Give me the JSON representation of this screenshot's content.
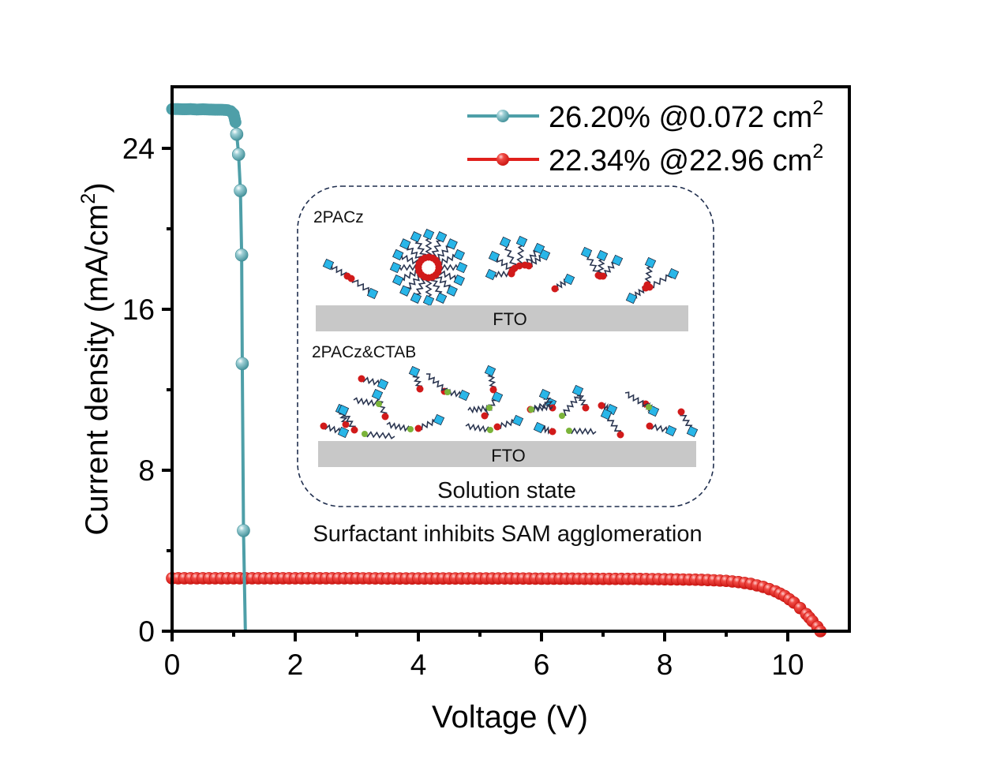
{
  "chart_data": {
    "type": "line",
    "title": "",
    "xlabel": "Voltage (V)",
    "ylabel": "Current density (mA/cm²)",
    "ylabel_parts": {
      "main": "Current density (mA/cm",
      "sup": "2",
      "end": ")"
    },
    "xlim": [
      0,
      11
    ],
    "ylim": [
      0,
      27.06
    ],
    "x_ticks": [
      0,
      2,
      4,
      6,
      8,
      10
    ],
    "x_tick_labels": [
      "0",
      "2",
      "4",
      "6",
      "8",
      "10"
    ],
    "x_minor_ticks": [
      1,
      3,
      5,
      7,
      9
    ],
    "y_ticks": [
      0,
      8,
      16,
      24
    ],
    "y_tick_labels": [
      "0",
      "8",
      "16",
      "24"
    ],
    "y_minor_ticks": [
      4,
      12,
      20
    ],
    "grid": false,
    "legend_position": "top-right",
    "series": [
      {
        "name": "26.20% @0.072 cm²",
        "label_main": "26.20% @0.072 cm",
        "label_sup": "2",
        "color": "#4e9fa8",
        "marker": "sphere",
        "x": [
          0,
          0.1,
          0.2,
          0.3,
          0.4,
          0.5,
          0.6,
          0.7,
          0.8,
          0.9,
          0.95,
          1.0,
          1.03,
          1.05,
          1.08,
          1.11,
          1.13,
          1.14,
          1.16,
          1.19
        ],
        "y": [
          25.95,
          25.95,
          25.94,
          25.95,
          25.93,
          25.94,
          25.93,
          25.92,
          25.92,
          25.9,
          25.85,
          25.7,
          25.3,
          24.7,
          23.7,
          21.9,
          18.7,
          13.3,
          5.0,
          0
        ]
      },
      {
        "name": "22.34% @22.96 cm²",
        "label_main": "22.34% @22.96 cm",
        "label_sup": "2",
        "color": "#e0201c",
        "marker": "sphere",
        "x": [
          0,
          0.5,
          1,
          1.5,
          2,
          2.5,
          3,
          3.5,
          4,
          4.5,
          5,
          5.5,
          6,
          6.5,
          7,
          7.5,
          8,
          8.5,
          8.8,
          9.0,
          9.2,
          9.4,
          9.6,
          9.8,
          9.95,
          10.1,
          10.2,
          10.3,
          10.4,
          10.48,
          10.53
        ],
        "y": [
          2.63,
          2.63,
          2.63,
          2.63,
          2.63,
          2.63,
          2.63,
          2.62,
          2.62,
          2.62,
          2.62,
          2.62,
          2.61,
          2.61,
          2.6,
          2.6,
          2.58,
          2.56,
          2.53,
          2.5,
          2.44,
          2.35,
          2.2,
          1.98,
          1.75,
          1.42,
          1.15,
          0.85,
          0.5,
          0.22,
          0
        ]
      }
    ]
  },
  "inset": {
    "top_label": "2PACz",
    "bottom_label": "2PACz&CTAB",
    "substrate_label_top": "FTO",
    "substrate_label_bottom": "FTO",
    "caption": "Solution state",
    "annotation": "Surfactant inhibits SAM agglomeration",
    "colors": {
      "head": "#29b6e8",
      "tail": "#2a3550",
      "anchor": "#d11a1a",
      "ctab_head": "#7bb43a",
      "substrate": "#c8c8c8",
      "border": "#1e2d4d"
    }
  }
}
